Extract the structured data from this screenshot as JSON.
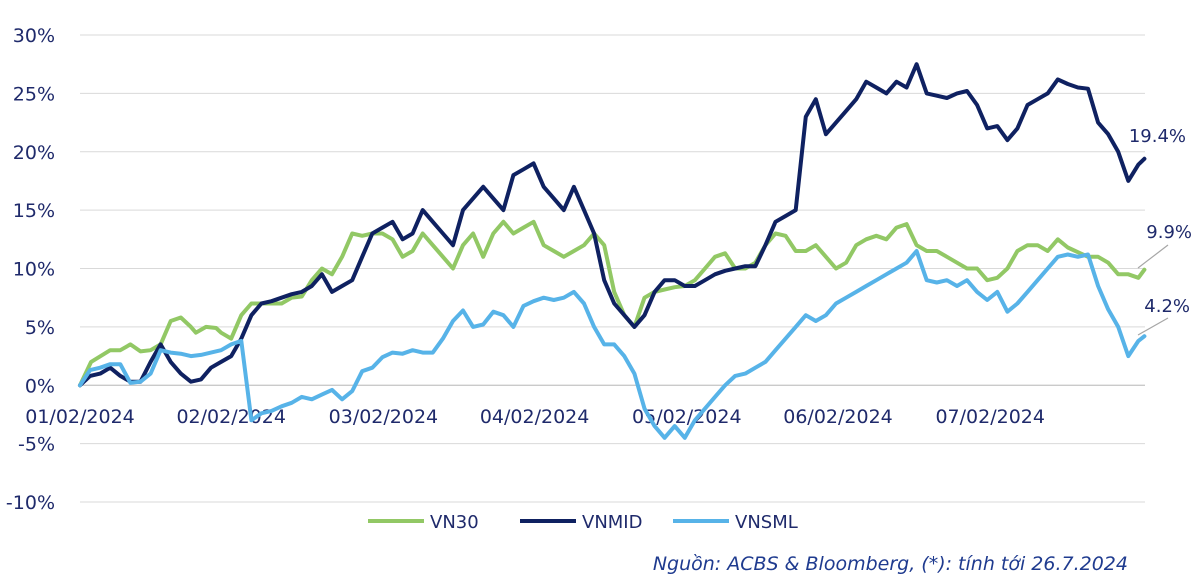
{
  "chart_data": {
    "type": "line",
    "ylim": [
      -10,
      30
    ],
    "yticks": [
      30,
      25,
      20,
      15,
      10,
      5,
      0,
      -5,
      -10
    ],
    "ytick_labels": [
      "30%",
      "25%",
      "20%",
      "15%",
      "10%",
      "5%",
      "0%",
      "-5%",
      "-10%"
    ],
    "x_domain": [
      0,
      100
    ],
    "xtick_labels": [
      "01/02/2024",
      "02/02/2024",
      "03/02/2024",
      "04/02/2024",
      "05/02/2024",
      "06/02/2024",
      "07/02/2024"
    ],
    "xtick_positions": [
      0,
      15.0,
      30.1,
      45.1,
      60.2,
      75.2,
      90.3
    ],
    "series": [
      {
        "name": "VN30",
        "color": "#92c865",
        "end_label": "9.9%",
        "points": [
          [
            0,
            0
          ],
          [
            1.1,
            2
          ],
          [
            3,
            3
          ],
          [
            4,
            3
          ],
          [
            5,
            3.5
          ],
          [
            6,
            2.9
          ],
          [
            7,
            3
          ],
          [
            8,
            3.5
          ],
          [
            9,
            5.5
          ],
          [
            10,
            5.8
          ],
          [
            11,
            5
          ],
          [
            11.5,
            4.5
          ],
          [
            12.5,
            5
          ],
          [
            13.5,
            4.9
          ],
          [
            14,
            4.5
          ],
          [
            15,
            4
          ],
          [
            16,
            6
          ],
          [
            17,
            7
          ],
          [
            18,
            7
          ],
          [
            19,
            7
          ],
          [
            20,
            7
          ],
          [
            21,
            7.5
          ],
          [
            22,
            7.6
          ],
          [
            23,
            9
          ],
          [
            24,
            10
          ],
          [
            25,
            9.5
          ],
          [
            26,
            11
          ],
          [
            27,
            13
          ],
          [
            28,
            12.8
          ],
          [
            29,
            13
          ],
          [
            30,
            13
          ],
          [
            31,
            12.5
          ],
          [
            32,
            11
          ],
          [
            33,
            11.5
          ],
          [
            34,
            13
          ],
          [
            35,
            12
          ],
          [
            36,
            11
          ],
          [
            37,
            10
          ],
          [
            38,
            12
          ],
          [
            39,
            13
          ],
          [
            40,
            11
          ],
          [
            41,
            13
          ],
          [
            42,
            14
          ],
          [
            43,
            13
          ],
          [
            44,
            13.5
          ],
          [
            45,
            14
          ],
          [
            46,
            12
          ],
          [
            47,
            11.5
          ],
          [
            48,
            11
          ],
          [
            49,
            11.5
          ],
          [
            50,
            12
          ],
          [
            51,
            13
          ],
          [
            52,
            12
          ],
          [
            53,
            8
          ],
          [
            54,
            6
          ],
          [
            55,
            5
          ],
          [
            56,
            7.5
          ],
          [
            57,
            8
          ],
          [
            58,
            8.2
          ],
          [
            59,
            8.4
          ],
          [
            60,
            8.5
          ],
          [
            61,
            9
          ],
          [
            62,
            10
          ],
          [
            63,
            11
          ],
          [
            64,
            11.3
          ],
          [
            65,
            10
          ],
          [
            66,
            10
          ],
          [
            67,
            10.5
          ],
          [
            68,
            12
          ],
          [
            69,
            13
          ],
          [
            70,
            12.8
          ],
          [
            71,
            11.5
          ],
          [
            72,
            11.5
          ],
          [
            73,
            12
          ],
          [
            74,
            11
          ],
          [
            75,
            10
          ],
          [
            76,
            10.5
          ],
          [
            77,
            12
          ],
          [
            78,
            12.5
          ],
          [
            79,
            12.8
          ],
          [
            80,
            12.5
          ],
          [
            81,
            13.5
          ],
          [
            82,
            13.8
          ],
          [
            83,
            12
          ],
          [
            84,
            11.5
          ],
          [
            85,
            11.5
          ],
          [
            86,
            11
          ],
          [
            87,
            10.5
          ],
          [
            88,
            10
          ],
          [
            89,
            10
          ],
          [
            90,
            9
          ],
          [
            91,
            9.2
          ],
          [
            92,
            10
          ],
          [
            93,
            11.5
          ],
          [
            94,
            12
          ],
          [
            95,
            12
          ],
          [
            96,
            11.5
          ],
          [
            97,
            12.5
          ],
          [
            98,
            11.8
          ],
          [
            99,
            11.4
          ],
          [
            100,
            11
          ],
          [
            101,
            11
          ],
          [
            102,
            10.5
          ],
          [
            103,
            9.5
          ],
          [
            104,
            9.5
          ],
          [
            105,
            9.2
          ],
          [
            105.6,
            9.9
          ]
        ]
      },
      {
        "name": "VNMID",
        "color": "#0f2161",
        "end_label": "19.4%",
        "points": [
          [
            0,
            0
          ],
          [
            1,
            0.8
          ],
          [
            2,
            1
          ],
          [
            3,
            1.5
          ],
          [
            4,
            0.8
          ],
          [
            5,
            0.3
          ],
          [
            6,
            0.3
          ],
          [
            7,
            2
          ],
          [
            8,
            3.5
          ],
          [
            9,
            2
          ],
          [
            10,
            1
          ],
          [
            11,
            0.3
          ],
          [
            12,
            0.5
          ],
          [
            13,
            1.5
          ],
          [
            14,
            2
          ],
          [
            15,
            2.5
          ],
          [
            16,
            4
          ],
          [
            17,
            6
          ],
          [
            18,
            7
          ],
          [
            19,
            7.2
          ],
          [
            20,
            7.5
          ],
          [
            21,
            7.8
          ],
          [
            22,
            8
          ],
          [
            23,
            8.5
          ],
          [
            24,
            9.5
          ],
          [
            25,
            8
          ],
          [
            26,
            8.5
          ],
          [
            27,
            9
          ],
          [
            28,
            11
          ],
          [
            29,
            13
          ],
          [
            30,
            13.5
          ],
          [
            31,
            14
          ],
          [
            32,
            12.5
          ],
          [
            33,
            13
          ],
          [
            34,
            15
          ],
          [
            35,
            14
          ],
          [
            36,
            13
          ],
          [
            37,
            12
          ],
          [
            38,
            15
          ],
          [
            39,
            16
          ],
          [
            40,
            17
          ],
          [
            41,
            16
          ],
          [
            42,
            15
          ],
          [
            43,
            18
          ],
          [
            44,
            18.5
          ],
          [
            45,
            19
          ],
          [
            46,
            17
          ],
          [
            47,
            16
          ],
          [
            48,
            15
          ],
          [
            49,
            17
          ],
          [
            50,
            15
          ],
          [
            51,
            13
          ],
          [
            52,
            9
          ],
          [
            53,
            7
          ],
          [
            54,
            6
          ],
          [
            55,
            5
          ],
          [
            56,
            6
          ],
          [
            57,
            8
          ],
          [
            58,
            9
          ],
          [
            59,
            9
          ],
          [
            60,
            8.5
          ],
          [
            61,
            8.5
          ],
          [
            62,
            9
          ],
          [
            63,
            9.5
          ],
          [
            64,
            9.8
          ],
          [
            65,
            10
          ],
          [
            66,
            10.2
          ],
          [
            67,
            10.2
          ],
          [
            68,
            12
          ],
          [
            69,
            14
          ],
          [
            70,
            14.5
          ],
          [
            71,
            15
          ],
          [
            72,
            23
          ],
          [
            73,
            24.5
          ],
          [
            74,
            21.5
          ],
          [
            75,
            22.5
          ],
          [
            76,
            23.5
          ],
          [
            77,
            24.5
          ],
          [
            78,
            26
          ],
          [
            79,
            25.5
          ],
          [
            80,
            25
          ],
          [
            81,
            26
          ],
          [
            82,
            25.5
          ],
          [
            83,
            27.5
          ],
          [
            84,
            25
          ],
          [
            85,
            24.8
          ],
          [
            86,
            24.6
          ],
          [
            87,
            25
          ],
          [
            88,
            25.2
          ],
          [
            89,
            24
          ],
          [
            90,
            22
          ],
          [
            91,
            22.2
          ],
          [
            92,
            21
          ],
          [
            93,
            22
          ],
          [
            94,
            24
          ],
          [
            95,
            24.5
          ],
          [
            96,
            25
          ],
          [
            97,
            26.2
          ],
          [
            98,
            25.8
          ],
          [
            99,
            25.5
          ],
          [
            100,
            25.4
          ],
          [
            101,
            22.5
          ],
          [
            102,
            21.5
          ],
          [
            103,
            20
          ],
          [
            104,
            17.5
          ],
          [
            105,
            18.9
          ],
          [
            105.6,
            19.4
          ]
        ]
      },
      {
        "name": "VNSML",
        "color": "#57b3e8",
        "end_label": "4.2%",
        "points": [
          [
            0,
            0
          ],
          [
            1,
            1.3
          ],
          [
            2,
            1.5
          ],
          [
            3,
            1.8
          ],
          [
            4,
            1.8
          ],
          [
            5,
            0.2
          ],
          [
            6,
            0.3
          ],
          [
            7,
            1
          ],
          [
            8,
            3
          ],
          [
            9,
            2.8
          ],
          [
            10,
            2.7
          ],
          [
            11,
            2.5
          ],
          [
            12,
            2.6
          ],
          [
            13,
            2.8
          ],
          [
            14,
            3
          ],
          [
            15,
            3.5
          ],
          [
            16,
            3.8
          ],
          [
            17,
            -3
          ],
          [
            18,
            -2.4
          ],
          [
            19,
            -2.2
          ],
          [
            20,
            -1.8
          ],
          [
            21,
            -1.5
          ],
          [
            22,
            -1
          ],
          [
            23,
            -1.2
          ],
          [
            24,
            -0.8
          ],
          [
            25,
            -0.4
          ],
          [
            26,
            -1.2
          ],
          [
            27,
            -0.5
          ],
          [
            28,
            1.2
          ],
          [
            29,
            1.5
          ],
          [
            30,
            2.4
          ],
          [
            31,
            2.8
          ],
          [
            32,
            2.7
          ],
          [
            33,
            3
          ],
          [
            34,
            2.8
          ],
          [
            35,
            2.8
          ],
          [
            36,
            4
          ],
          [
            37,
            5.5
          ],
          [
            38,
            6.4
          ],
          [
            39,
            5
          ],
          [
            40,
            5.2
          ],
          [
            41,
            6.3
          ],
          [
            42,
            6
          ],
          [
            43,
            5
          ],
          [
            44,
            6.8
          ],
          [
            45,
            7.2
          ],
          [
            46,
            7.5
          ],
          [
            47,
            7.3
          ],
          [
            48,
            7.5
          ],
          [
            49,
            8
          ],
          [
            50,
            7
          ],
          [
            51,
            5
          ],
          [
            52,
            3.5
          ],
          [
            53,
            3.5
          ],
          [
            54,
            2.5
          ],
          [
            55,
            1
          ],
          [
            56,
            -2
          ],
          [
            57,
            -3.5
          ],
          [
            58,
            -4.5
          ],
          [
            59,
            -3.5
          ],
          [
            60,
            -4.5
          ],
          [
            61,
            -3
          ],
          [
            62,
            -2
          ],
          [
            63,
            -1
          ],
          [
            64,
            0
          ],
          [
            65,
            0.8
          ],
          [
            66,
            1
          ],
          [
            67,
            1.5
          ],
          [
            68,
            2
          ],
          [
            69,
            3
          ],
          [
            70,
            4
          ],
          [
            71,
            5
          ],
          [
            72,
            6
          ],
          [
            73,
            5.5
          ],
          [
            74,
            6
          ],
          [
            75,
            7
          ],
          [
            76,
            7.5
          ],
          [
            77,
            8
          ],
          [
            78,
            8.5
          ],
          [
            79,
            9
          ],
          [
            80,
            9.5
          ],
          [
            81,
            10
          ],
          [
            82,
            10.5
          ],
          [
            83,
            11.5
          ],
          [
            84,
            9
          ],
          [
            85,
            8.8
          ],
          [
            86,
            9
          ],
          [
            87,
            8.5
          ],
          [
            88,
            9
          ],
          [
            89,
            8
          ],
          [
            90,
            7.3
          ],
          [
            91,
            8
          ],
          [
            92,
            6.3
          ],
          [
            93,
            7
          ],
          [
            94,
            8
          ],
          [
            95,
            9
          ],
          [
            96,
            10
          ],
          [
            97,
            11
          ],
          [
            98,
            11.2
          ],
          [
            99,
            11
          ],
          [
            100,
            11.2
          ],
          [
            101,
            8.5
          ],
          [
            102,
            6.5
          ],
          [
            103,
            5
          ],
          [
            104,
            2.5
          ],
          [
            105,
            3.8
          ],
          [
            105.6,
            4.2
          ]
        ]
      }
    ],
    "legend_position": "bottom-center",
    "source_note": "Nguồn:  ACBS & Bloomberg, (*): tính tới 26.7.2024"
  }
}
